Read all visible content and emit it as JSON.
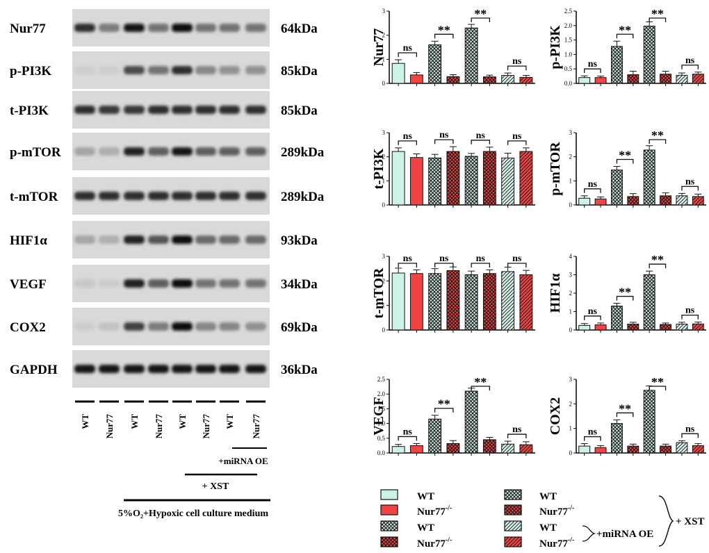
{
  "blot": {
    "rows": [
      {
        "protein": "Nur77",
        "size": "64kDa",
        "intensity": [
          0.85,
          0.45,
          0.95,
          0.5,
          1.0,
          0.5,
          0.5,
          0.5
        ]
      },
      {
        "protein": "p-PI3K",
        "size": "85kDa",
        "intensity": [
          0.05,
          0.05,
          0.7,
          0.5,
          0.85,
          0.4,
          0.35,
          0.35
        ]
      },
      {
        "protein": "t-PI3K",
        "size": "85kDa",
        "intensity": [
          0.85,
          0.8,
          0.8,
          0.85,
          0.85,
          0.85,
          0.85,
          0.85
        ]
      },
      {
        "protein": "p-mTOR",
        "size": "289kDa",
        "intensity": [
          0.25,
          0.2,
          0.9,
          0.6,
          0.95,
          0.6,
          0.6,
          0.6
        ]
      },
      {
        "protein": "t-mTOR",
        "size": "289kDa",
        "intensity": [
          0.85,
          0.85,
          0.85,
          0.85,
          0.85,
          0.85,
          0.85,
          0.85
        ]
      },
      {
        "protein": "HIF1α",
        "size": "93kDa",
        "intensity": [
          0.25,
          0.2,
          0.9,
          0.65,
          1.0,
          0.55,
          0.55,
          0.55
        ]
      },
      {
        "protein": "VEGF",
        "size": "34kDa",
        "intensity": [
          0.08,
          0.05,
          0.9,
          0.6,
          1.0,
          0.5,
          0.5,
          0.5
        ]
      },
      {
        "protein": "COX2",
        "size": "69kDa",
        "intensity": [
          0.05,
          0.1,
          0.75,
          0.45,
          1.0,
          0.4,
          0.4,
          0.35
        ]
      },
      {
        "protein": "GAPDH",
        "size": "36kDa",
        "intensity": [
          0.95,
          0.95,
          0.95,
          0.95,
          0.95,
          0.95,
          0.95,
          0.95
        ]
      }
    ],
    "lanes": [
      "WT",
      "Nur77",
      "WT",
      "Nur77",
      "WT",
      "Nur77",
      "WT",
      "Nur77"
    ],
    "groups": [
      {
        "label": "+miRNA OE"
      },
      {
        "label": "+ XST"
      },
      {
        "label": "5%O₂+Hypoxic cell culture medium"
      }
    ]
  },
  "chart_data": [
    {
      "type": "bar",
      "ylabel": "Nur77",
      "ylim": [
        0,
        3
      ],
      "yticks": [
        0,
        1,
        2,
        3
      ],
      "yticklabels": [
        "0",
        "1",
        "2",
        "3"
      ],
      "values": [
        0.83,
        0.35,
        1.6,
        0.28,
        2.3,
        0.27,
        0.33,
        0.25
      ],
      "errors": [
        0.15,
        0.1,
        0.15,
        0.08,
        0.15,
        0.07,
        0.1,
        0.08
      ],
      "annotations": [
        {
          "pair": [
            0,
            1
          ],
          "label": "ns"
        },
        {
          "pair": [
            2,
            3
          ],
          "label": "**"
        },
        {
          "pair": [
            4,
            5
          ],
          "label": "**"
        },
        {
          "pair": [
            6,
            7
          ],
          "label": "ns"
        }
      ]
    },
    {
      "type": "bar",
      "ylabel": "p-PI3K",
      "ylim": [
        0,
        2.5
      ],
      "yticks": [
        0,
        0.5,
        1,
        1.5,
        2,
        2.5
      ],
      "yticklabels": [
        "0.0",
        "0.5",
        "1.0",
        "1.5",
        "2.0",
        "2.5"
      ],
      "values": [
        0.2,
        0.2,
        1.28,
        0.3,
        1.98,
        0.32,
        0.28,
        0.32
      ],
      "errors": [
        0.06,
        0.05,
        0.18,
        0.12,
        0.15,
        0.1,
        0.08,
        0.07
      ],
      "annotations": [
        {
          "pair": [
            0,
            1
          ],
          "label": "ns"
        },
        {
          "pair": [
            2,
            3
          ],
          "label": "**"
        },
        {
          "pair": [
            4,
            5
          ],
          "label": "**"
        },
        {
          "pair": [
            6,
            7
          ],
          "label": "ns"
        }
      ]
    },
    {
      "type": "bar",
      "ylabel": "t-PI3K",
      "ylim": [
        0,
        3
      ],
      "yticks": [
        0,
        1,
        2,
        3
      ],
      "yticklabels": [
        "0",
        "1",
        "2",
        "3"
      ],
      "values": [
        2.22,
        1.97,
        1.95,
        2.22,
        2.02,
        2.22,
        1.95,
        2.22
      ],
      "errors": [
        0.15,
        0.15,
        0.15,
        0.2,
        0.12,
        0.18,
        0.2,
        0.15
      ],
      "annotations": [
        {
          "pair": [
            0,
            1
          ],
          "label": "ns"
        },
        {
          "pair": [
            2,
            3
          ],
          "label": "ns"
        },
        {
          "pair": [
            4,
            5
          ],
          "label": "ns"
        },
        {
          "pair": [
            6,
            7
          ],
          "label": "ns"
        }
      ]
    },
    {
      "type": "bar",
      "ylabel": "p-mTOR",
      "ylim": [
        0,
        3
      ],
      "yticks": [
        0,
        1,
        2,
        3
      ],
      "yticklabels": [
        "0",
        "1",
        "2",
        "3"
      ],
      "values": [
        0.28,
        0.25,
        1.45,
        0.35,
        2.28,
        0.38,
        0.38,
        0.35
      ],
      "errors": [
        0.1,
        0.08,
        0.15,
        0.12,
        0.18,
        0.12,
        0.1,
        0.1
      ],
      "annotations": [
        {
          "pair": [
            0,
            1
          ],
          "label": "ns"
        },
        {
          "pair": [
            2,
            3
          ],
          "label": "**"
        },
        {
          "pair": [
            4,
            5
          ],
          "label": "**"
        },
        {
          "pair": [
            6,
            7
          ],
          "label": "ns"
        }
      ]
    },
    {
      "type": "bar",
      "ylabel": "t-mTOR",
      "ylim": [
        0,
        3
      ],
      "yticks": [
        0,
        1,
        2,
        3
      ],
      "yticklabels": [
        "0",
        "1",
        "2",
        "3"
      ],
      "values": [
        2.32,
        2.3,
        2.3,
        2.42,
        2.25,
        2.3,
        2.38,
        2.25
      ],
      "errors": [
        0.2,
        0.15,
        0.2,
        0.15,
        0.15,
        0.15,
        0.18,
        0.18
      ],
      "annotations": [
        {
          "pair": [
            0,
            1
          ],
          "label": "ns"
        },
        {
          "pair": [
            2,
            3
          ],
          "label": "ns"
        },
        {
          "pair": [
            4,
            5
          ],
          "label": "ns"
        },
        {
          "pair": [
            6,
            7
          ],
          "label": "ns"
        }
      ]
    },
    {
      "type": "bar",
      "ylabel": "HIF1α",
      "ylim": [
        0,
        4
      ],
      "yticks": [
        0,
        1,
        2,
        3,
        4
      ],
      "yticklabels": [
        "0",
        "1",
        "2",
        "3",
        "4"
      ],
      "values": [
        0.25,
        0.28,
        1.3,
        0.32,
        3.0,
        0.3,
        0.32,
        0.33
      ],
      "errors": [
        0.1,
        0.1,
        0.15,
        0.1,
        0.2,
        0.08,
        0.1,
        0.1
      ],
      "annotations": [
        {
          "pair": [
            0,
            1
          ],
          "label": "ns"
        },
        {
          "pair": [
            2,
            3
          ],
          "label": "**"
        },
        {
          "pair": [
            4,
            5
          ],
          "label": "**"
        },
        {
          "pair": [
            6,
            7
          ],
          "label": "ns"
        }
      ]
    },
    {
      "type": "bar",
      "ylabel": "VEGF",
      "ylim": [
        0,
        2.5
      ],
      "yticks": [
        0,
        0.5,
        1,
        1.5,
        2,
        2.5
      ],
      "yticklabels": [
        "0.0",
        "0.5",
        "1.0",
        "1.5",
        "2.0",
        "2.5"
      ],
      "values": [
        0.22,
        0.25,
        1.15,
        0.32,
        2.1,
        0.45,
        0.3,
        0.28
      ],
      "errors": [
        0.07,
        0.07,
        0.13,
        0.1,
        0.1,
        0.08,
        0.1,
        0.1
      ],
      "annotations": [
        {
          "pair": [
            0,
            1
          ],
          "label": "ns"
        },
        {
          "pair": [
            2,
            3
          ],
          "label": "**"
        },
        {
          "pair": [
            4,
            5
          ],
          "label": "**"
        },
        {
          "pair": [
            6,
            7
          ],
          "label": "ns"
        }
      ]
    },
    {
      "type": "bar",
      "ylabel": "COX2",
      "ylim": [
        0,
        3
      ],
      "yticks": [
        0,
        1,
        2,
        3
      ],
      "yticklabels": [
        "0",
        "1",
        "2",
        "3"
      ],
      "values": [
        0.28,
        0.22,
        1.2,
        0.28,
        2.55,
        0.28,
        0.42,
        0.3
      ],
      "errors": [
        0.1,
        0.08,
        0.15,
        0.08,
        0.18,
        0.08,
        0.08,
        0.08
      ],
      "annotations": [
        {
          "pair": [
            0,
            1
          ],
          "label": "ns"
        },
        {
          "pair": [
            2,
            3
          ],
          "label": "**"
        },
        {
          "pair": [
            4,
            5
          ],
          "label": "**"
        },
        {
          "pair": [
            6,
            7
          ],
          "label": "ns"
        }
      ]
    }
  ],
  "groups_style": [
    {
      "fill": "#cdf2e6",
      "pattern": "none"
    },
    {
      "fill": "#f04444",
      "pattern": "none"
    },
    {
      "fill": "#cfe8df",
      "pattern": "cross"
    },
    {
      "fill": "#e84545",
      "pattern": "crossred"
    },
    {
      "fill": "#cfe8df",
      "pattern": "cross"
    },
    {
      "fill": "#e84545",
      "pattern": "crossred"
    },
    {
      "fill": "#d6f2ea",
      "pattern": "diag"
    },
    {
      "fill": "#e84545",
      "pattern": "diagred"
    }
  ],
  "legend": {
    "items": [
      {
        "label": "WT",
        "pattern": "none",
        "fill": "#cdf2e6"
      },
      {
        "label": "Nur77",
        "sup": "-/-",
        "pattern": "none",
        "fill": "#f04444"
      },
      {
        "label": "WT",
        "pattern": "cross",
        "fill": "#cfe8df"
      },
      {
        "label": "Nur77",
        "sup": "-/-",
        "pattern": "crossred",
        "fill": "#e84545"
      },
      {
        "label": "WT",
        "pattern": "cross",
        "fill": "#cfe8df"
      },
      {
        "label": "Nur77",
        "sup": "-/-",
        "pattern": "crossred",
        "fill": "#e84545"
      },
      {
        "label": "WT",
        "pattern": "diag",
        "fill": "#d6f2ea"
      },
      {
        "label": "Nur77",
        "sup": "-/-",
        "pattern": "diagred",
        "fill": "#e84545"
      }
    ],
    "mirna_label": "+miRNA OE",
    "xst_label": "+ XST"
  }
}
